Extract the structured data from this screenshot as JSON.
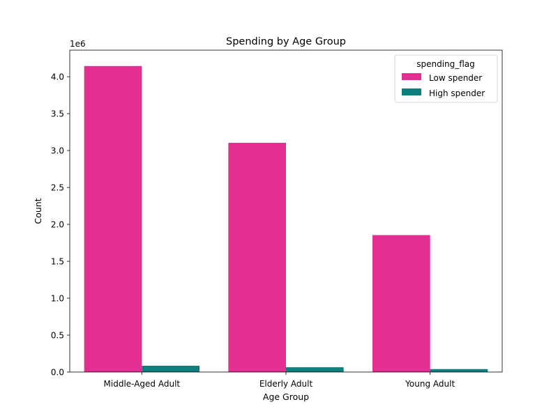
{
  "chart_data": {
    "type": "bar",
    "title": "Spending by Age Group",
    "xlabel": "Age Group",
    "ylabel": "Count",
    "y_offset_label": "1e6",
    "categories": [
      "Middle-Aged Adult",
      "Elderly Adult",
      "Young Adult"
    ],
    "series": [
      {
        "name": "Low spender",
        "color": "#e32f91",
        "values": [
          4.145,
          3.105,
          1.855
        ]
      },
      {
        "name": "High spender",
        "color": "#0e7f7d",
        "values": [
          0.085,
          0.065,
          0.04
        ]
      }
    ],
    "ylim": [
      0,
      4.36
    ],
    "yticks": [
      0.0,
      0.5,
      1.0,
      1.5,
      2.0,
      2.5,
      3.0,
      3.5,
      4.0
    ],
    "ytick_labels": [
      "0.0",
      "0.5",
      "1.0",
      "1.5",
      "2.0",
      "2.5",
      "3.0",
      "3.5",
      "4.0"
    ],
    "grid": false,
    "legend": {
      "title": "spending_flag",
      "position": "top-right"
    }
  }
}
